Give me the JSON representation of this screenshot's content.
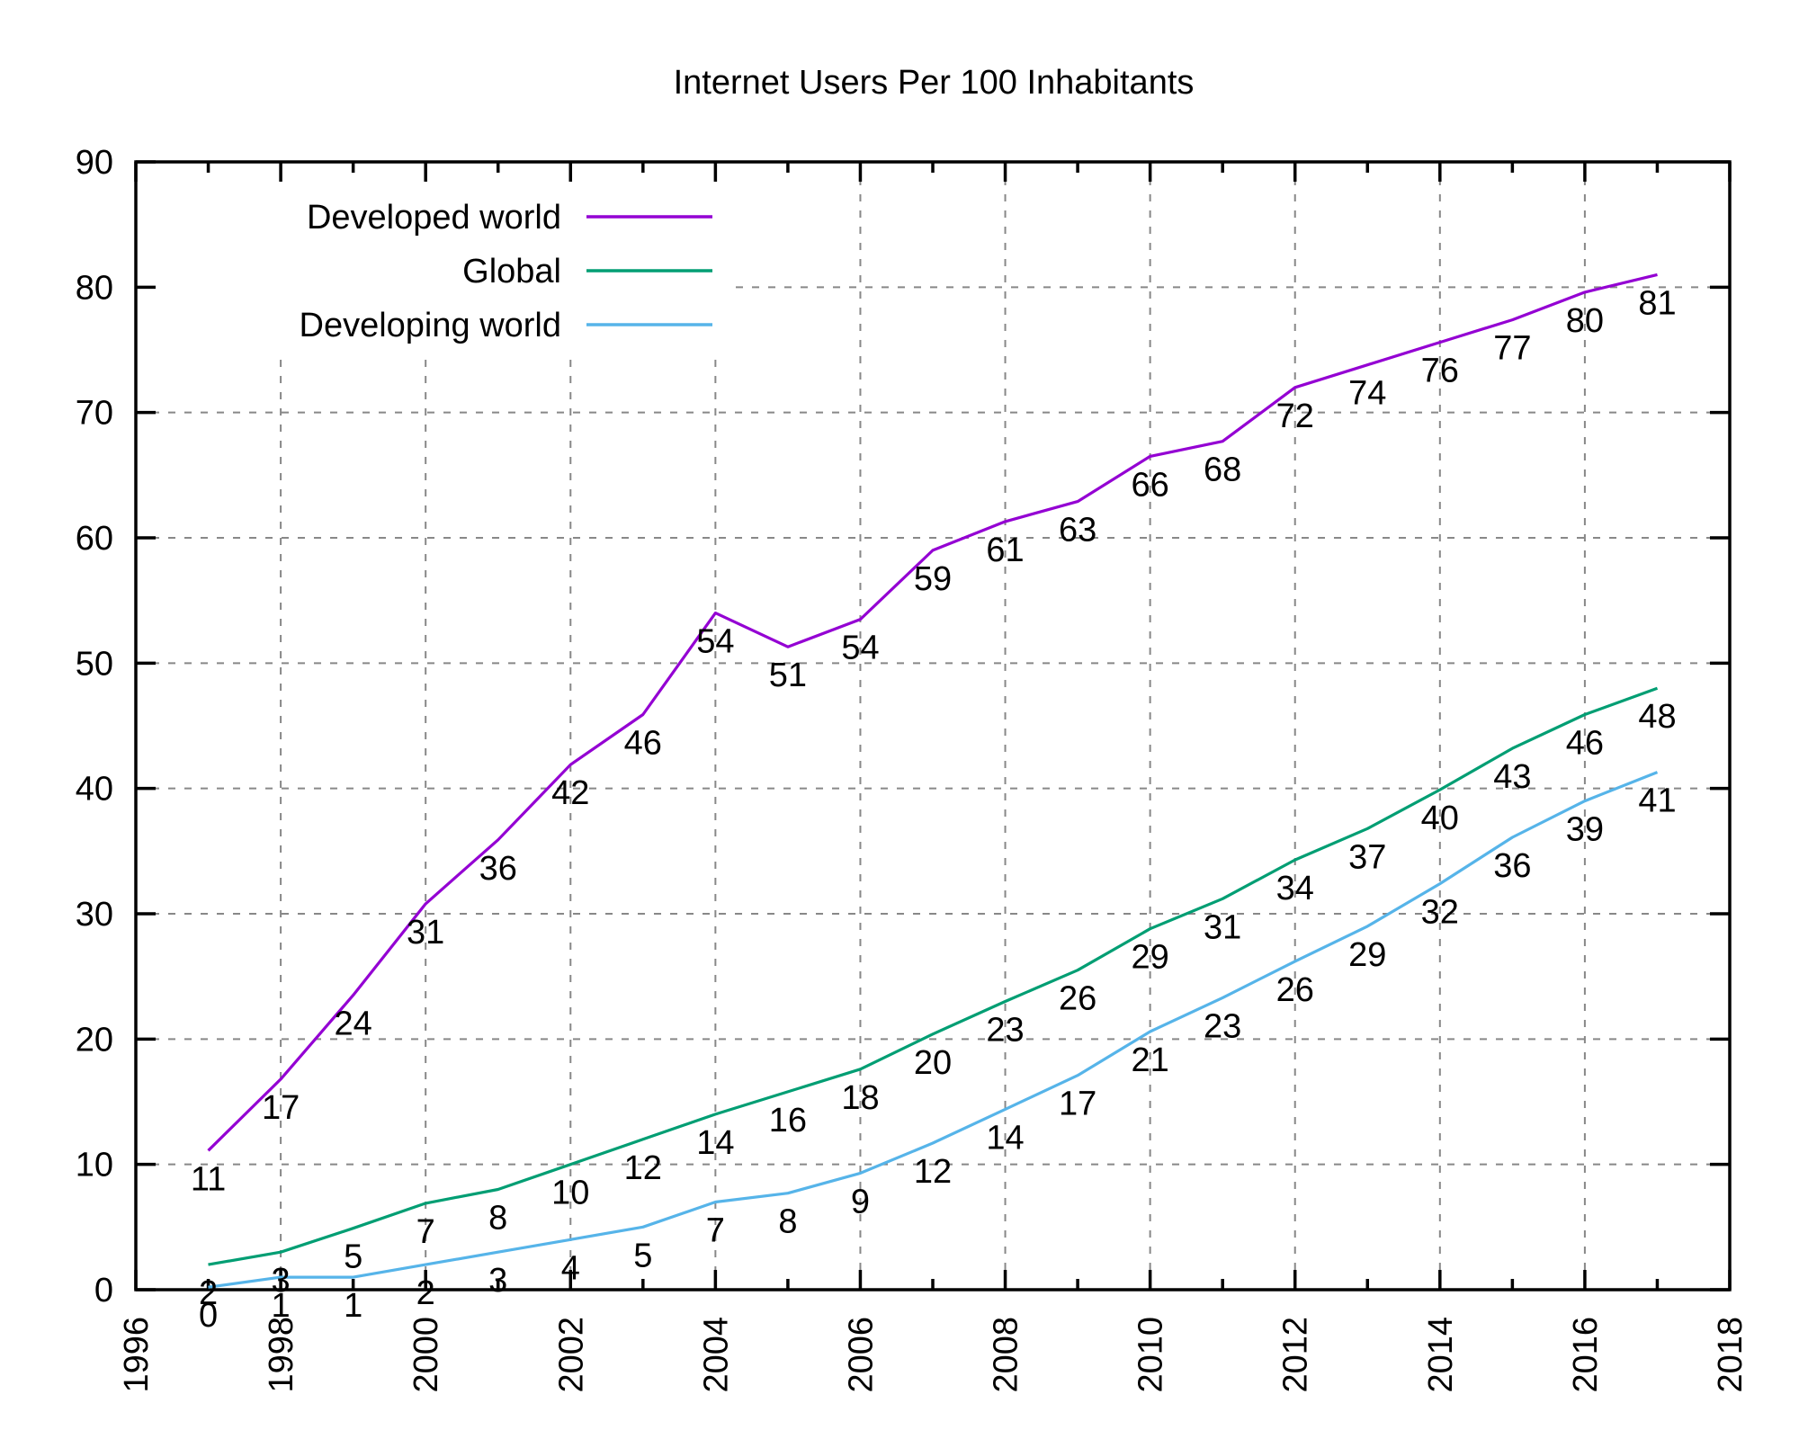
{
  "title": "Internet Users Per 100 Inhabitants",
  "chart_data": {
    "type": "line",
    "title": "Internet Users Per 100 Inhabitants",
    "xlabel": "",
    "ylabel": "",
    "xlim": [
      1996,
      2018
    ],
    "ylim": [
      0,
      90
    ],
    "x_ticks": [
      1996,
      1998,
      2000,
      2002,
      2004,
      2006,
      2008,
      2010,
      2012,
      2014,
      2016,
      2018
    ],
    "x_minor_ticks": [
      1997,
      1999,
      2001,
      2003,
      2005,
      2007,
      2009,
      2011,
      2013,
      2015,
      2017
    ],
    "y_ticks": [
      0,
      10,
      20,
      30,
      40,
      50,
      60,
      70,
      80,
      90
    ],
    "grid": true,
    "legend_position": "top-left",
    "x": [
      1997,
      1998,
      1999,
      2000,
      2001,
      2002,
      2003,
      2004,
      2005,
      2006,
      2007,
      2008,
      2009,
      2010,
      2011,
      2012,
      2013,
      2014,
      2015,
      2016,
      2017
    ],
    "series": [
      {
        "name": "Developed world",
        "color": "#9400d3",
        "values": [
          11.1,
          16.8,
          23.5,
          30.8,
          35.9,
          41.9,
          45.9,
          54.0,
          51.3,
          53.5,
          59.0,
          61.3,
          62.9,
          66.5,
          67.7,
          72.0,
          73.8,
          75.6,
          77.4,
          79.6,
          81.0
        ],
        "labels": [
          "11",
          "17",
          "24",
          "31",
          "36",
          "42",
          "46",
          "54",
          "51",
          "54",
          "59",
          "61",
          "63",
          "66",
          "68",
          "72",
          "74",
          "76",
          "77",
          "80",
          "81"
        ]
      },
      {
        "name": "Global",
        "color": "#009e73",
        "values": [
          2.0,
          3.0,
          4.9,
          6.9,
          8.0,
          10.0,
          12.0,
          14.0,
          15.8,
          17.6,
          20.4,
          23.0,
          25.5,
          28.8,
          31.2,
          34.3,
          36.8,
          39.9,
          43.2,
          45.9,
          48.0
        ],
        "labels": [
          "2",
          "3",
          "5",
          "7",
          "8",
          "10",
          "12",
          "14",
          "16",
          "18",
          "20",
          "23",
          "26",
          "29",
          "31",
          "34",
          "37",
          "40",
          "43",
          "46",
          "48"
        ]
      },
      {
        "name": "Developing world",
        "color": "#56b4e9",
        "values": [
          0.2,
          1.0,
          1.0,
          2.0,
          3.0,
          4.0,
          5.0,
          7.0,
          7.7,
          9.3,
          11.7,
          14.4,
          17.1,
          20.6,
          23.3,
          26.2,
          29.0,
          32.4,
          36.1,
          39.0,
          41.3
        ],
        "labels": [
          "0",
          "1",
          "1",
          "2",
          "3",
          "4",
          "5",
          "7",
          "8",
          "9",
          "12",
          "14",
          "17",
          "21",
          "23",
          "26",
          "29",
          "32",
          "36",
          "39",
          "41"
        ]
      }
    ]
  }
}
